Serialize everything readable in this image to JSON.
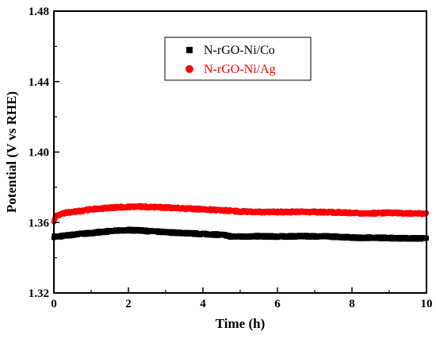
{
  "chart_data": {
    "type": "line",
    "xlabel": "Time (h)",
    "ylabel": "Potential (V vs RHE)",
    "xlim": [
      0,
      10
    ],
    "ylim": [
      1.32,
      1.48
    ],
    "xticks": [
      0,
      2,
      4,
      6,
      8,
      10
    ],
    "yticks": [
      1.32,
      1.36,
      1.4,
      1.44,
      1.48
    ],
    "ytick_labels": [
      "1.32",
      "1.36",
      "1.40",
      "1.44",
      "1.48"
    ],
    "grid": false,
    "legend_position": "top-center",
    "series": [
      {
        "name": "N-rGO-Ni/Co",
        "color": "#000000",
        "marker": "square",
        "x": [
          0,
          0.1,
          0.3,
          0.5,
          0.7,
          1.0,
          1.2,
          1.5,
          1.8,
          2.0,
          2.3,
          2.6,
          3.0,
          3.5,
          4.0,
          4.5,
          4.8,
          5.0,
          5.5,
          6.0,
          6.5,
          7.0,
          7.5,
          8.0,
          8.3,
          8.5,
          9.0,
          9.5,
          10.0
        ],
        "y": [
          1.352,
          1.352,
          1.3525,
          1.353,
          1.3535,
          1.354,
          1.3545,
          1.355,
          1.3555,
          1.3557,
          1.3555,
          1.355,
          1.3545,
          1.354,
          1.3535,
          1.353,
          1.352,
          1.352,
          1.3522,
          1.352,
          1.3522,
          1.3522,
          1.352,
          1.3515,
          1.3512,
          1.3515,
          1.3512,
          1.351,
          1.351
        ]
      },
      {
        "name": "N-rGO-Ni/Ag",
        "color": "#ff0000",
        "marker": "circle",
        "x": [
          0,
          0.05,
          0.15,
          0.3,
          0.5,
          0.7,
          1.0,
          1.3,
          1.6,
          2.0,
          2.3,
          2.6,
          3.0,
          3.5,
          4.0,
          4.5,
          4.8,
          5.0,
          5.5,
          6.0,
          6.5,
          7.0,
          7.5,
          8.0,
          8.3,
          8.5,
          9.0,
          9.5,
          10.0
        ],
        "y": [
          1.361,
          1.3635,
          1.3645,
          1.3655,
          1.366,
          1.3665,
          1.3675,
          1.368,
          1.3685,
          1.369,
          1.369,
          1.3688,
          1.3685,
          1.368,
          1.3675,
          1.367,
          1.3665,
          1.3662,
          1.366,
          1.366,
          1.366,
          1.366,
          1.3658,
          1.3655,
          1.365,
          1.3652,
          1.3655,
          1.3652,
          1.365
        ]
      }
    ]
  }
}
